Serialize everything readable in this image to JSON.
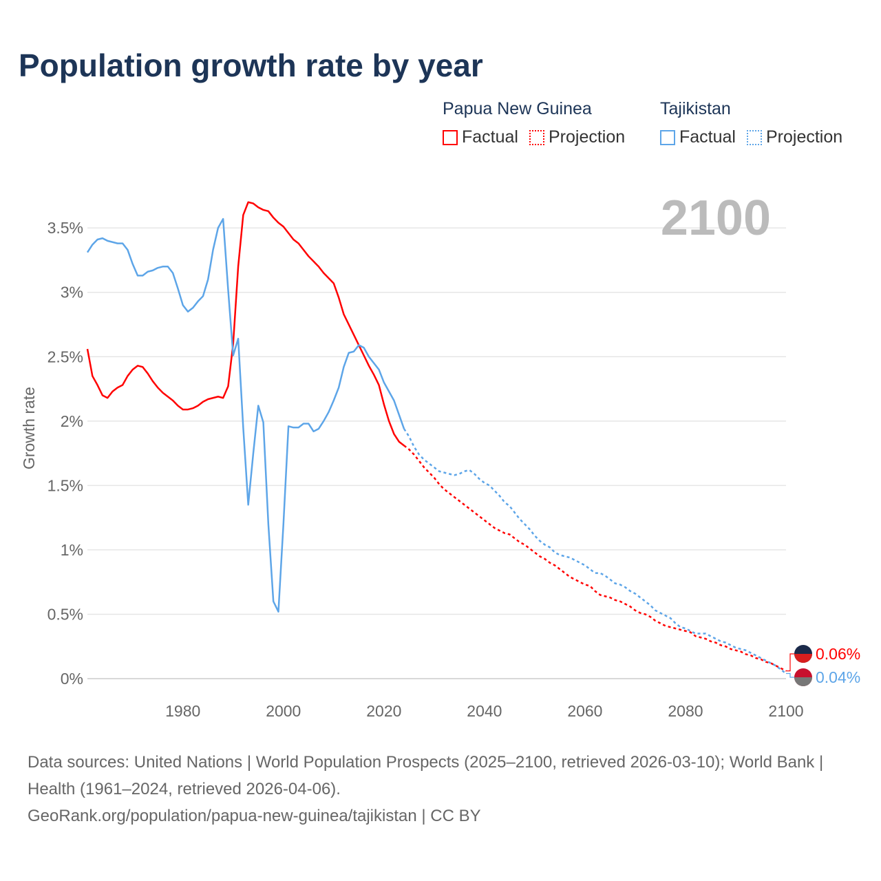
{
  "title": "Population growth rate by year",
  "legend": {
    "groups": [
      {
        "name": "Papua New Guinea",
        "factual": "Factual",
        "projection": "Projection",
        "color": "#ff0000"
      },
      {
        "name": "Tajikistan",
        "factual": "Factual",
        "projection": "Projection",
        "color": "#5da5e8"
      }
    ]
  },
  "footer": {
    "sources": "Data sources: United Nations | World Population Prospects (2025–2100, retrieved 2026-03-10); World Bank | Health (1961–2024, retrieved 2026-04-06).",
    "link": "GeoRank.org/population/papua-new-guinea/tajikistan | CC BY"
  },
  "chart_data": {
    "type": "line",
    "title": "Population growth rate by year",
    "xlabel": "",
    "ylabel": "Growth rate",
    "year_label": "2100",
    "xlim": [
      1961,
      2100
    ],
    "ylim": [
      0,
      3.7
    ],
    "x_ticks": [
      1980,
      2000,
      2020,
      2040,
      2060,
      2080,
      2100
    ],
    "y_ticks": [
      {
        "v": 0,
        "l": "0%"
      },
      {
        "v": 0.5,
        "l": "0.5%"
      },
      {
        "v": 1,
        "l": "1%"
      },
      {
        "v": 1.5,
        "l": "1.5%"
      },
      {
        "v": 2,
        "l": "2%"
      },
      {
        "v": 2.5,
        "l": "2.5%"
      },
      {
        "v": 3,
        "l": "3%"
      },
      {
        "v": 3.5,
        "l": "3.5%"
      }
    ],
    "grid": true,
    "series": [
      {
        "name": "Papua New Guinea",
        "color": "#ff0000",
        "end_label": "0.06%",
        "factual_start": 1961,
        "factual": [
          2.56,
          2.35,
          2.28,
          2.2,
          2.18,
          2.23,
          2.26,
          2.28,
          2.35,
          2.4,
          2.43,
          2.42,
          2.37,
          2.31,
          2.26,
          2.22,
          2.19,
          2.16,
          2.12,
          2.09,
          2.09,
          2.1,
          2.12,
          2.15,
          2.17,
          2.18,
          2.19,
          2.18,
          2.27,
          2.6,
          3.2,
          3.6,
          3.7,
          3.69,
          3.66,
          3.64,
          3.63,
          3.58,
          3.54,
          3.51,
          3.46,
          3.41,
          3.38,
          3.33,
          3.28,
          3.24,
          3.2,
          3.15,
          3.11,
          3.07,
          2.96,
          2.83,
          2.75,
          2.67,
          2.59,
          2.51,
          2.43,
          2.36,
          2.28,
          2.13,
          2.0,
          1.9,
          1.84,
          1.81
        ],
        "projection_start": 2024,
        "projection": [
          1.81,
          1.78,
          1.74,
          1.69,
          1.64,
          1.6,
          1.56,
          1.51,
          1.47,
          1.44,
          1.41,
          1.38,
          1.35,
          1.32,
          1.29,
          1.26,
          1.23,
          1.2,
          1.17,
          1.15,
          1.13,
          1.12,
          1.09,
          1.06,
          1.04,
          1.01,
          0.98,
          0.95,
          0.93,
          0.9,
          0.88,
          0.85,
          0.82,
          0.79,
          0.77,
          0.75,
          0.73,
          0.72,
          0.68,
          0.65,
          0.64,
          0.63,
          0.61,
          0.6,
          0.58,
          0.56,
          0.53,
          0.51,
          0.5,
          0.48,
          0.45,
          0.43,
          0.41,
          0.4,
          0.39,
          0.38,
          0.37,
          0.36,
          0.33,
          0.32,
          0.31,
          0.29,
          0.28,
          0.26,
          0.25,
          0.23,
          0.22,
          0.21,
          0.19,
          0.18,
          0.16,
          0.15,
          0.13,
          0.12,
          0.1,
          0.08,
          0.06
        ]
      },
      {
        "name": "Tajikistan",
        "color": "#5da5e8",
        "end_label": "0.04%",
        "factual_start": 1961,
        "factual": [
          3.31,
          3.37,
          3.41,
          3.42,
          3.4,
          3.39,
          3.38,
          3.38,
          3.33,
          3.22,
          3.13,
          3.13,
          3.16,
          3.17,
          3.19,
          3.2,
          3.2,
          3.15,
          3.03,
          2.9,
          2.85,
          2.88,
          2.93,
          2.97,
          3.1,
          3.33,
          3.5,
          3.57,
          3.02,
          2.51,
          2.64,
          1.95,
          1.35,
          1.75,
          2.12,
          1.99,
          1.2,
          0.6,
          0.52,
          1.2,
          1.96,
          1.95,
          1.95,
          1.98,
          1.98,
          1.92,
          1.94,
          2.0,
          2.07,
          2.16,
          2.26,
          2.42,
          2.53,
          2.54,
          2.59,
          2.57,
          2.5,
          2.45,
          2.4,
          2.3,
          2.23,
          2.16,
          2.05,
          1.94
        ],
        "projection_start": 2024,
        "projection": [
          1.94,
          1.88,
          1.8,
          1.74,
          1.7,
          1.67,
          1.64,
          1.61,
          1.6,
          1.59,
          1.58,
          1.59,
          1.61,
          1.62,
          1.59,
          1.55,
          1.52,
          1.5,
          1.46,
          1.42,
          1.37,
          1.34,
          1.29,
          1.24,
          1.2,
          1.16,
          1.11,
          1.07,
          1.04,
          1.02,
          0.98,
          0.96,
          0.95,
          0.94,
          0.92,
          0.9,
          0.88,
          0.85,
          0.82,
          0.82,
          0.8,
          0.77,
          0.74,
          0.73,
          0.71,
          0.68,
          0.66,
          0.63,
          0.6,
          0.57,
          0.53,
          0.51,
          0.49,
          0.47,
          0.43,
          0.4,
          0.39,
          0.37,
          0.35,
          0.35,
          0.35,
          0.33,
          0.31,
          0.29,
          0.28,
          0.26,
          0.24,
          0.23,
          0.22,
          0.2,
          0.18,
          0.16,
          0.14,
          0.12,
          0.1,
          0.07,
          0.04
        ]
      }
    ]
  }
}
